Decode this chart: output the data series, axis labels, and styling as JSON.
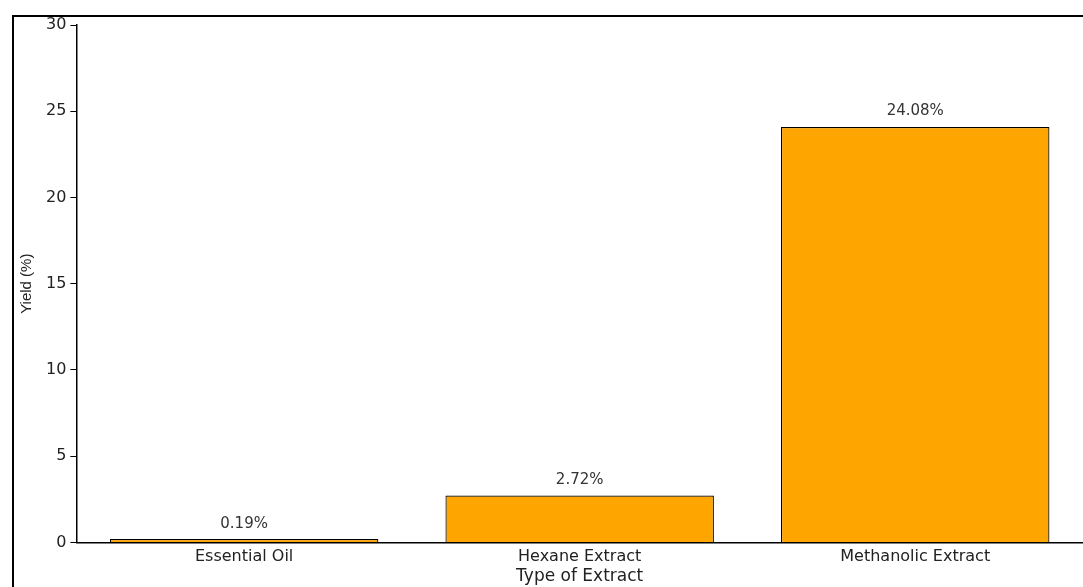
{
  "chart_data": {
    "type": "bar",
    "xlabel": "Type of Extract",
    "ylabel": "Yield (%)",
    "categories": [
      "Essential Oil",
      "Hexane Extract",
      "Methanolic Extract"
    ],
    "values": [
      0.19,
      2.72,
      24.08
    ],
    "color": "#ffa500",
    "value_labels": [
      "0.19%",
      "2.72%",
      "24.08%"
    ],
    "ylim": [
      0,
      30
    ],
    "yticks": [
      0,
      5,
      10,
      15,
      20,
      25,
      30
    ],
    "grid": false,
    "legend": false
  }
}
